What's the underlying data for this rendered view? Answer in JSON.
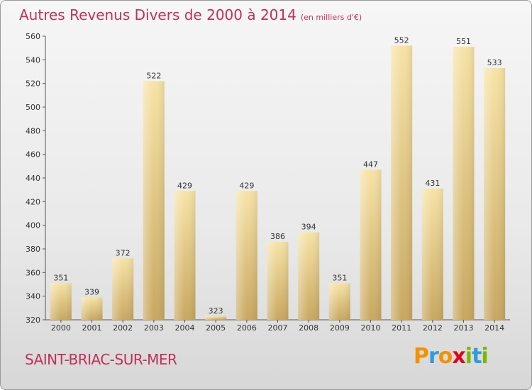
{
  "title": "Autres Revenus Divers de 2000 à 2014",
  "subtitle": "(en milliers d'€)",
  "footer_city": "SAINT-BRIAC-SUR-MER",
  "logo": {
    "letters": [
      "P",
      "r",
      "o",
      "x",
      "i",
      "t",
      "i"
    ],
    "colors": [
      "#f39200",
      "#2e9be0",
      "#f39200",
      "#e2001a",
      "#7ab800",
      "#2e9be0",
      "#7ab800"
    ]
  },
  "colors": {
    "title": "#c0305a",
    "bar_light": "#f7e3a6",
    "bar_dark": "#c8a860"
  },
  "chart_data": {
    "type": "bar",
    "title": "Autres Revenus Divers de 2000 à 2014",
    "subtitle": "(en milliers d'€)",
    "categories": [
      "2000",
      "2001",
      "2002",
      "2003",
      "2004",
      "2005",
      "2006",
      "2007",
      "2008",
      "2009",
      "2010",
      "2011",
      "2012",
      "2013",
      "2014"
    ],
    "values": [
      351,
      339,
      372,
      522,
      429,
      323,
      429,
      386,
      394,
      351,
      447,
      552,
      431,
      551,
      533
    ],
    "ylim": [
      320,
      560
    ],
    "yticks": [
      320,
      340,
      360,
      380,
      400,
      420,
      440,
      460,
      480,
      500,
      520,
      540,
      560
    ],
    "grid": false,
    "xlabel": "",
    "ylabel": ""
  }
}
